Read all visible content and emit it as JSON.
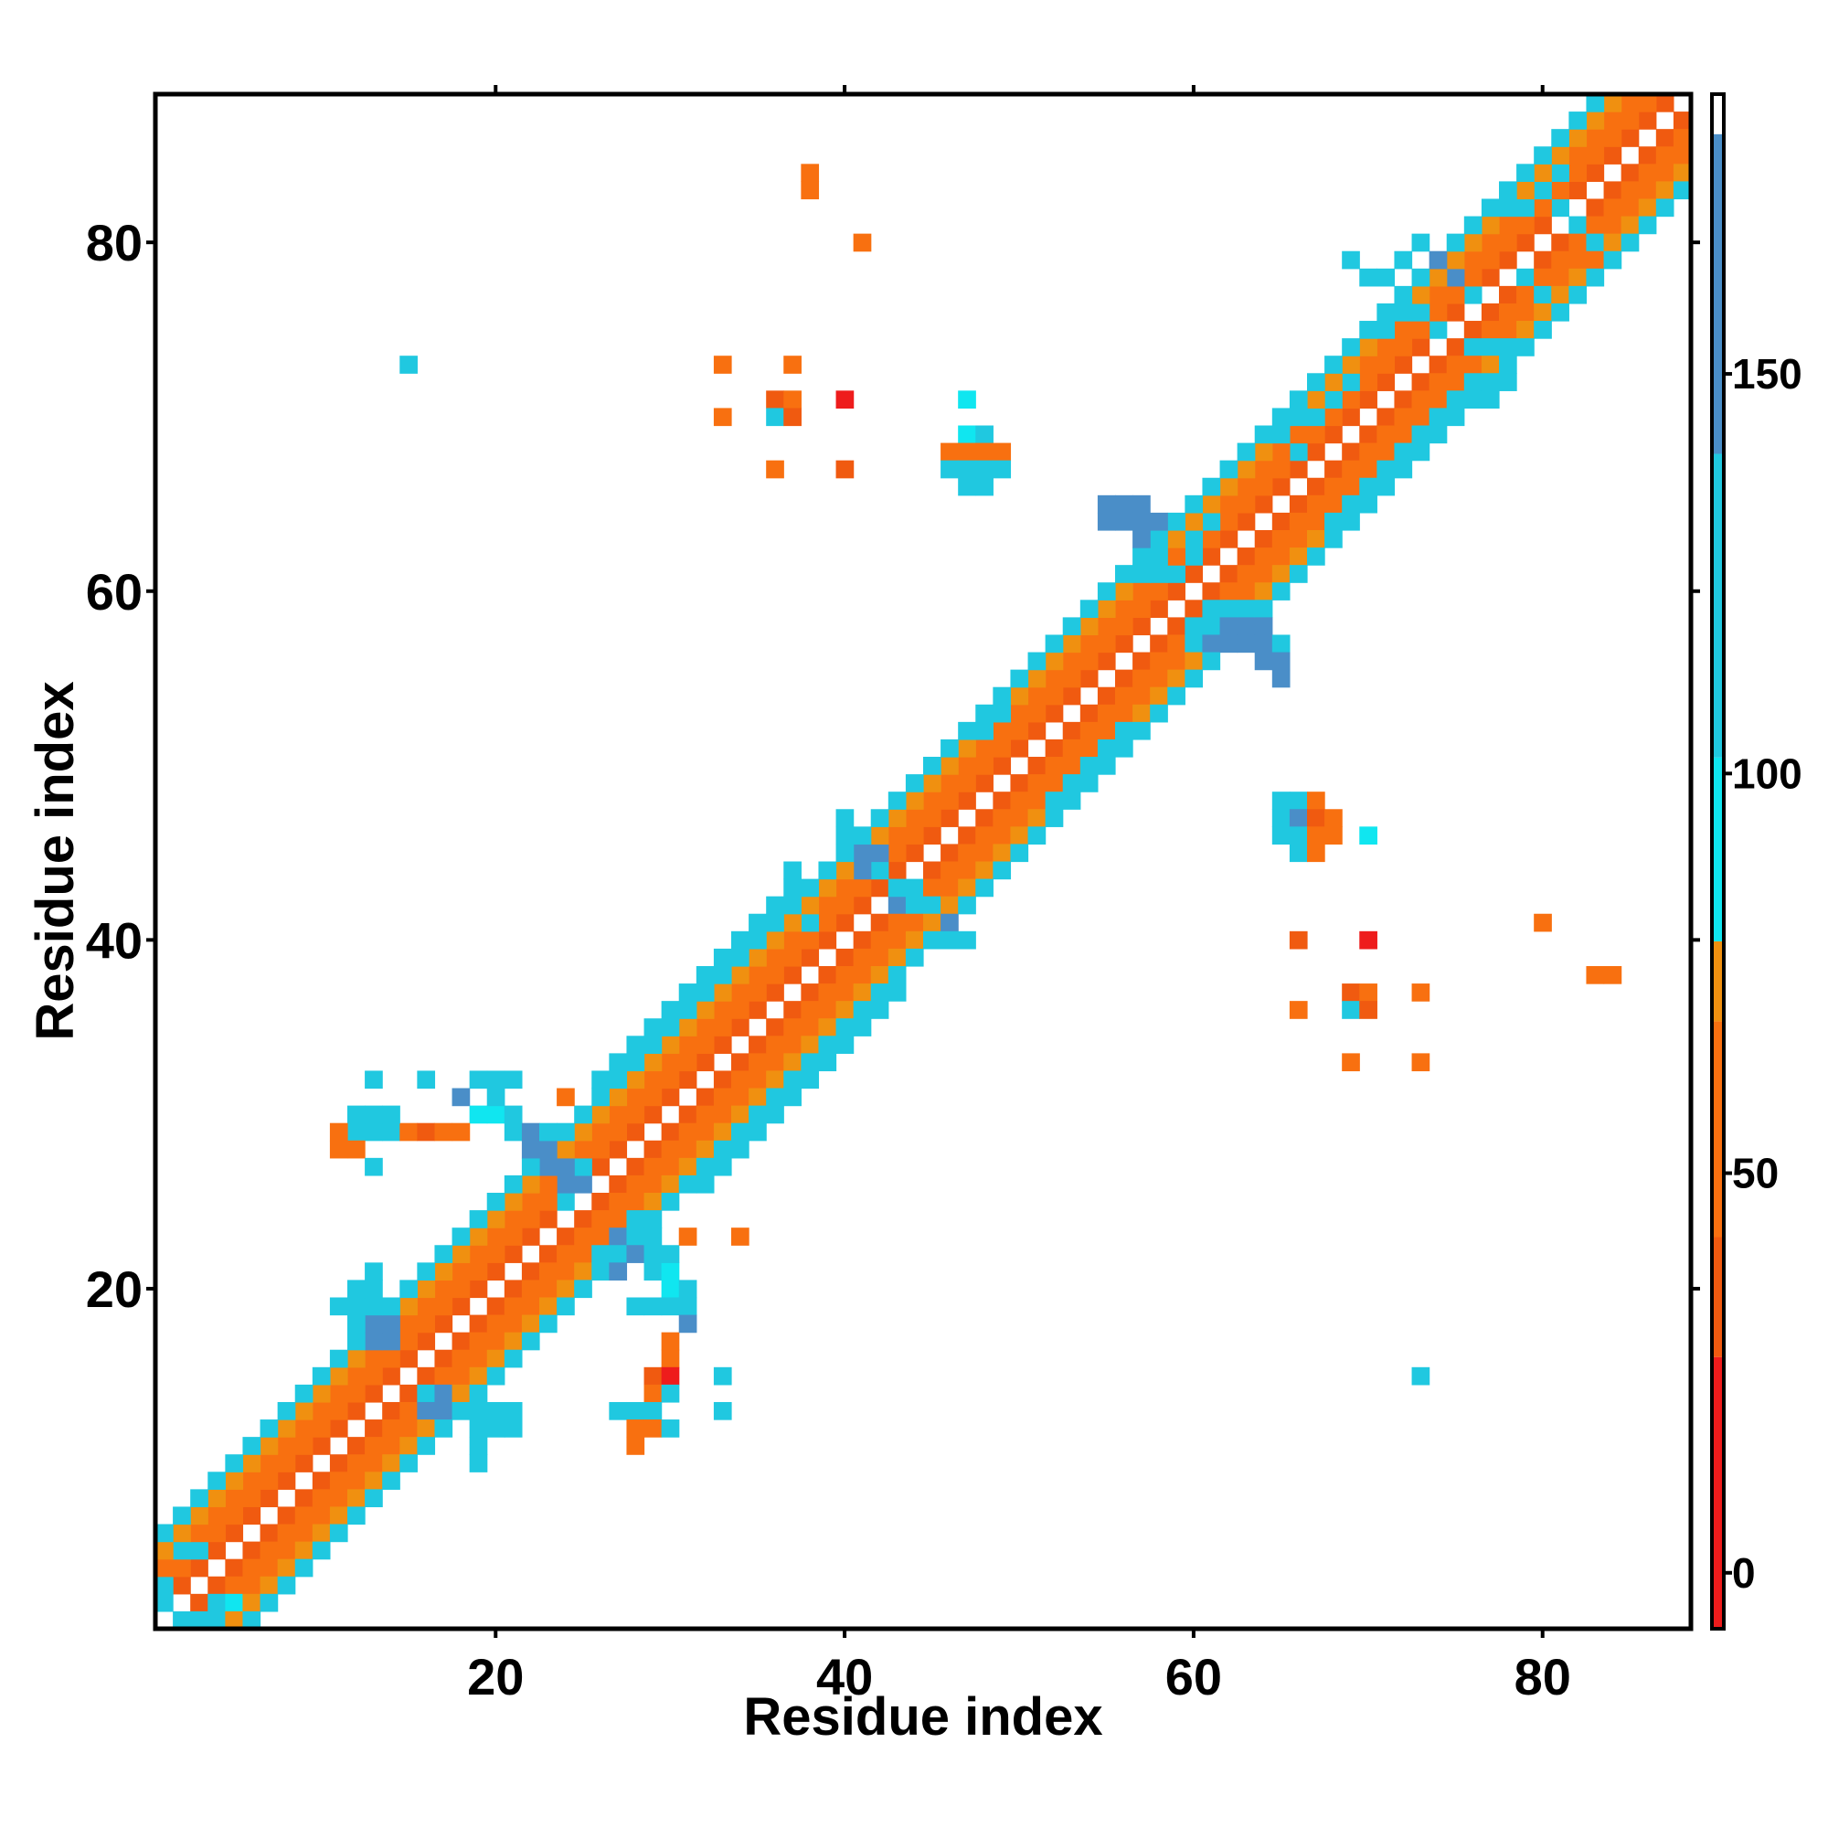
{
  "chart_data": {
    "type": "heatmap",
    "title": "",
    "xlabel": "Residue index",
    "ylabel": "Residue index",
    "xlim": [
      0.5,
      88.5
    ],
    "ylim": [
      0.5,
      88.5
    ],
    "x_ticks": [
      20,
      40,
      60,
      80
    ],
    "y_ticks": [
      20,
      40,
      60,
      80
    ],
    "grid": false,
    "legend": "right",
    "colorbar": {
      "ticks": [
        0,
        50,
        100,
        150
      ],
      "range": [
        -7,
        185
      ],
      "bands": [
        {
          "from": -7,
          "to": 27,
          "color": "#ee1c1c"
        },
        {
          "from": 27,
          "to": 42,
          "color": "#f05a10"
        },
        {
          "from": 42,
          "to": 69,
          "color": "#f87010"
        },
        {
          "from": 69,
          "to": 79,
          "color": "#f09010"
        },
        {
          "from": 79,
          "to": 102,
          "color": "#10e6f0"
        },
        {
          "from": 102,
          "to": 140,
          "color": "#20c8e0"
        },
        {
          "from": 140,
          "to": 180,
          "color": "#4a8ec8"
        },
        {
          "from": 180,
          "to": 185,
          "color": "#ffffff"
        }
      ]
    },
    "diagonal_band": {
      "offsets": [
        1,
        2,
        3,
        4,
        5
      ],
      "values": [
        40,
        55,
        60,
        70,
        112
      ]
    },
    "cells": [
      [
        13,
        17,
        140
      ],
      [
        13,
        18,
        140
      ],
      [
        14,
        18,
        140
      ],
      [
        14,
        17,
        140
      ],
      [
        12,
        17,
        110
      ],
      [
        12,
        18,
        110
      ],
      [
        11,
        19,
        110
      ],
      [
        12,
        19,
        110
      ],
      [
        13,
        19,
        110
      ],
      [
        12,
        20,
        110
      ],
      [
        13,
        20,
        110
      ],
      [
        13,
        21,
        110
      ],
      [
        16,
        13,
        140
      ],
      [
        17,
        13,
        140
      ],
      [
        16,
        14,
        110
      ],
      [
        17,
        14,
        140
      ],
      [
        18,
        13,
        110
      ],
      [
        19,
        13,
        110
      ],
      [
        19,
        12,
        110
      ],
      [
        20,
        13,
        110
      ],
      [
        20,
        12,
        110
      ],
      [
        21,
        13,
        110
      ],
      [
        21,
        12,
        110
      ],
      [
        19,
        11,
        110
      ],
      [
        19,
        10,
        110
      ],
      [
        18,
        31,
        150
      ],
      [
        19,
        32,
        110
      ],
      [
        20,
        32,
        110
      ],
      [
        21,
        32,
        110
      ],
      [
        19,
        30,
        95
      ],
      [
        20,
        30,
        95
      ],
      [
        20,
        31,
        110
      ],
      [
        21,
        30,
        110
      ],
      [
        21,
        29,
        110
      ],
      [
        22,
        29,
        140
      ],
      [
        22,
        28,
        140
      ],
      [
        23,
        28,
        150
      ],
      [
        23,
        29,
        110
      ],
      [
        23,
        27,
        150
      ],
      [
        24,
        27,
        140
      ],
      [
        24,
        26,
        140
      ],
      [
        25,
        26,
        140
      ],
      [
        24,
        25,
        110
      ],
      [
        25,
        27,
        110
      ],
      [
        24,
        31,
        60
      ],
      [
        26,
        21,
        110
      ],
      [
        26,
        22,
        110
      ],
      [
        27,
        21,
        140
      ],
      [
        27,
        22,
        110
      ],
      [
        27,
        23,
        140
      ],
      [
        28,
        23,
        110
      ],
      [
        28,
        24,
        110
      ],
      [
        28,
        22,
        140
      ],
      [
        29,
        22,
        110
      ],
      [
        29,
        23,
        110
      ],
      [
        29,
        21,
        110
      ],
      [
        30,
        21,
        95
      ],
      [
        30,
        20,
        95
      ],
      [
        28,
        19,
        110
      ],
      [
        29,
        19,
        110
      ],
      [
        30,
        19,
        110
      ],
      [
        31,
        20,
        110
      ],
      [
        31,
        19,
        110
      ],
      [
        30,
        22,
        110
      ],
      [
        12,
        29,
        110
      ],
      [
        13,
        29,
        110
      ],
      [
        14,
        29,
        110
      ],
      [
        15,
        29,
        60
      ],
      [
        16,
        29,
        30
      ],
      [
        17,
        29,
        55
      ],
      [
        18,
        29,
        55
      ],
      [
        13,
        30,
        110
      ],
      [
        12,
        30,
        110
      ],
      [
        11,
        28,
        55
      ],
      [
        12,
        28,
        55
      ],
      [
        13,
        27,
        110
      ],
      [
        11,
        29,
        55
      ],
      [
        14,
        30,
        110
      ],
      [
        13,
        32,
        110
      ],
      [
        16,
        32,
        110
      ],
      [
        30,
        16,
        55
      ],
      [
        30,
        17,
        55
      ],
      [
        29,
        15,
        30
      ],
      [
        30,
        15,
        10
      ],
      [
        29,
        14,
        60
      ],
      [
        30,
        14,
        110
      ],
      [
        27,
        13,
        110
      ],
      [
        28,
        13,
        110
      ],
      [
        29,
        13,
        110
      ],
      [
        28,
        12,
        55
      ],
      [
        29,
        12,
        55
      ],
      [
        28,
        11,
        55
      ],
      [
        30,
        12,
        110
      ],
      [
        31,
        18,
        140
      ],
      [
        33,
        15,
        110
      ],
      [
        33,
        13,
        110
      ],
      [
        31,
        23,
        60
      ],
      [
        34,
        23,
        60
      ],
      [
        38,
        84,
        60
      ],
      [
        38,
        83,
        55
      ],
      [
        41,
        80,
        55
      ],
      [
        15,
        73,
        110
      ],
      [
        33,
        73,
        55
      ],
      [
        37,
        73,
        55
      ],
      [
        36,
        71,
        30
      ],
      [
        37,
        71,
        60
      ],
      [
        40,
        71,
        10
      ],
      [
        36,
        70,
        110
      ],
      [
        37,
        70,
        30
      ],
      [
        33,
        70,
        55
      ],
      [
        36,
        67,
        55
      ],
      [
        40,
        67,
        30
      ],
      [
        47,
        71,
        95
      ],
      [
        47,
        69,
        95
      ],
      [
        48,
        69,
        110
      ],
      [
        46,
        68,
        60
      ],
      [
        47,
        68,
        60
      ],
      [
        48,
        68,
        60
      ],
      [
        49,
        68,
        60
      ],
      [
        46,
        67,
        110
      ],
      [
        47,
        67,
        110
      ],
      [
        48,
        67,
        110
      ],
      [
        49,
        67,
        110
      ],
      [
        47,
        66,
        110
      ],
      [
        48,
        66,
        110
      ],
      [
        66,
        48,
        110
      ],
      [
        65,
        48,
        110
      ],
      [
        67,
        48,
        60
      ],
      [
        65,
        47,
        110
      ],
      [
        66,
        47,
        140
      ],
      [
        67,
        47,
        30
      ],
      [
        68,
        47,
        55
      ],
      [
        65,
        46,
        110
      ],
      [
        66,
        46,
        110
      ],
      [
        67,
        46,
        60
      ],
      [
        68,
        46,
        60
      ],
      [
        66,
        45,
        110
      ],
      [
        67,
        45,
        60
      ],
      [
        70,
        46,
        95
      ],
      [
        66,
        40,
        30
      ],
      [
        70,
        40,
        10
      ],
      [
        69,
        37,
        30
      ],
      [
        70,
        37,
        60
      ],
      [
        73,
        37,
        55
      ],
      [
        69,
        36,
        110
      ],
      [
        70,
        36,
        30
      ],
      [
        66,
        36,
        55
      ],
      [
        69,
        33,
        55
      ],
      [
        73,
        33,
        55
      ],
      [
        80,
        41,
        55
      ],
      [
        83,
        38,
        55
      ],
      [
        84,
        38,
        55
      ],
      [
        73,
        15,
        110
      ],
      [
        55,
        65,
        140
      ],
      [
        56,
        65,
        140
      ],
      [
        57,
        65,
        140
      ],
      [
        55,
        64,
        140
      ],
      [
        56,
        64,
        150
      ],
      [
        57,
        64,
        150
      ],
      [
        58,
        64,
        150
      ],
      [
        57,
        63,
        140
      ],
      [
        58,
        63,
        110
      ],
      [
        57,
        62,
        110
      ],
      [
        58,
        62,
        110
      ],
      [
        57,
        61,
        110
      ],
      [
        58,
        61,
        110
      ],
      [
        59,
        61,
        110
      ],
      [
        60,
        63,
        110
      ],
      [
        60,
        62,
        110
      ],
      [
        61,
        64,
        110
      ],
      [
        60,
        58,
        110
      ],
      [
        61,
        58,
        110
      ],
      [
        62,
        58,
        140
      ],
      [
        63,
        58,
        140
      ],
      [
        64,
        58,
        140
      ],
      [
        60,
        57,
        110
      ],
      [
        61,
        57,
        140
      ],
      [
        62,
        57,
        140
      ],
      [
        63,
        57,
        140
      ],
      [
        64,
        57,
        150
      ],
      [
        65,
        57,
        110
      ],
      [
        65,
        56,
        150
      ],
      [
        64,
        56,
        150
      ],
      [
        65,
        55,
        150
      ],
      [
        61,
        59,
        110
      ],
      [
        62,
        59,
        110
      ],
      [
        63,
        59,
        110
      ],
      [
        40,
        47,
        110
      ],
      [
        40,
        46,
        110
      ],
      [
        41,
        45,
        150
      ],
      [
        42,
        45,
        150
      ],
      [
        39,
        44,
        110
      ],
      [
        41,
        44,
        140
      ],
      [
        42,
        44,
        110
      ],
      [
        43,
        43,
        110
      ],
      [
        44,
        42,
        110
      ],
      [
        45,
        42,
        110
      ],
      [
        46,
        41,
        140
      ],
      [
        46,
        40,
        110
      ],
      [
        47,
        40,
        110
      ],
      [
        44,
        43,
        110
      ],
      [
        43,
        42,
        140
      ],
      [
        38,
        43,
        110
      ],
      [
        37,
        44,
        110
      ],
      [
        71,
        78,
        110
      ],
      [
        72,
        79,
        110
      ],
      [
        73,
        80,
        110
      ],
      [
        74,
        79,
        150
      ],
      [
        75,
        78,
        150
      ],
      [
        76,
        77,
        110
      ],
      [
        73,
        76,
        110
      ],
      [
        74,
        75,
        110
      ],
      [
        76,
        74,
        110
      ],
      [
        77,
        74,
        110
      ],
      [
        78,
        74,
        110
      ],
      [
        79,
        74,
        110
      ],
      [
        70,
        78,
        110
      ],
      [
        69,
        79,
        110
      ],
      [
        78,
        72,
        110
      ],
      [
        76,
        72,
        110
      ],
      [
        77,
        71,
        110
      ],
      [
        77,
        82,
        110
      ],
      [
        78,
        82,
        110
      ],
      [
        79,
        82,
        110
      ],
      [
        80,
        83,
        110
      ],
      [
        81,
        82,
        110
      ],
      [
        81,
        83,
        60
      ],
      [
        82,
        81,
        110
      ],
      [
        83,
        80,
        110
      ],
      [
        83,
        79,
        60
      ],
      [
        79,
        78,
        110
      ],
      [
        80,
        77,
        110
      ],
      [
        67,
        70,
        110
      ],
      [
        68,
        71,
        110
      ],
      [
        69,
        72,
        110
      ],
      [
        66,
        70,
        110
      ],
      [
        65,
        70,
        110
      ],
      [
        70,
        75,
        110
      ],
      [
        71,
        75,
        110
      ],
      [
        72,
        76,
        110
      ],
      [
        26,
        32,
        110
      ],
      [
        27,
        33,
        110
      ],
      [
        28,
        34,
        110
      ],
      [
        29,
        35,
        110
      ],
      [
        30,
        36,
        110
      ],
      [
        31,
        37,
        110
      ],
      [
        32,
        38,
        110
      ],
      [
        33,
        39,
        110
      ],
      [
        34,
        40,
        110
      ],
      [
        35,
        41,
        110
      ],
      [
        36,
        42,
        110
      ],
      [
        37,
        43,
        110
      ],
      [
        32,
        26,
        110
      ],
      [
        33,
        27,
        110
      ],
      [
        34,
        28,
        110
      ],
      [
        35,
        29,
        110
      ],
      [
        36,
        30,
        110
      ],
      [
        37,
        31,
        110
      ],
      [
        38,
        32,
        110
      ],
      [
        39,
        33,
        110
      ],
      [
        40,
        34,
        110
      ],
      [
        41,
        35,
        110
      ],
      [
        42,
        36,
        110
      ],
      [
        43,
        37,
        110
      ],
      [
        29,
        34,
        110
      ],
      [
        30,
        35,
        110
      ],
      [
        31,
        36,
        110
      ],
      [
        32,
        37,
        110
      ],
      [
        33,
        38,
        110
      ],
      [
        34,
        39,
        110
      ],
      [
        35,
        40,
        110
      ],
      [
        36,
        41,
        110
      ],
      [
        37,
        42,
        110
      ],
      [
        38,
        41,
        110
      ],
      [
        34,
        29,
        110
      ],
      [
        35,
        30,
        110
      ],
      [
        36,
        31,
        110
      ],
      [
        37,
        32,
        110
      ],
      [
        38,
        33,
        110
      ],
      [
        39,
        34,
        110
      ],
      [
        40,
        35,
        110
      ],
      [
        41,
        36,
        110
      ],
      [
        42,
        37,
        110
      ],
      [
        43,
        38,
        110
      ],
      [
        44,
        39,
        110
      ],
      [
        45,
        40,
        110
      ],
      [
        50,
        55,
        110
      ],
      [
        51,
        56,
        110
      ],
      [
        52,
        57,
        110
      ],
      [
        53,
        58,
        110
      ],
      [
        48,
        52,
        110
      ],
      [
        49,
        53,
        110
      ],
      [
        52,
        48,
        110
      ],
      [
        53,
        49,
        110
      ],
      [
        54,
        50,
        110
      ],
      [
        55,
        51,
        110
      ],
      [
        56,
        52,
        110
      ],
      [
        64,
        69,
        110
      ],
      [
        65,
        69,
        110
      ],
      [
        66,
        68,
        110
      ],
      [
        68,
        64,
        110
      ],
      [
        69,
        65,
        110
      ],
      [
        70,
        66,
        110
      ],
      [
        71,
        67,
        110
      ],
      [
        72,
        68,
        110
      ],
      [
        73,
        69,
        110
      ],
      [
        74,
        70,
        110
      ],
      [
        75,
        71,
        110
      ],
      [
        80,
        85,
        110
      ],
      [
        81,
        84,
        110
      ],
      [
        2,
        5,
        110
      ],
      [
        3,
        5,
        110
      ],
      [
        1,
        3,
        110
      ],
      [
        1,
        2,
        110
      ],
      [
        5,
        2,
        95
      ],
      [
        2,
        1,
        110
      ],
      [
        3,
        1,
        110
      ],
      [
        4,
        1,
        110
      ],
      [
        4,
        2,
        110
      ]
    ]
  }
}
